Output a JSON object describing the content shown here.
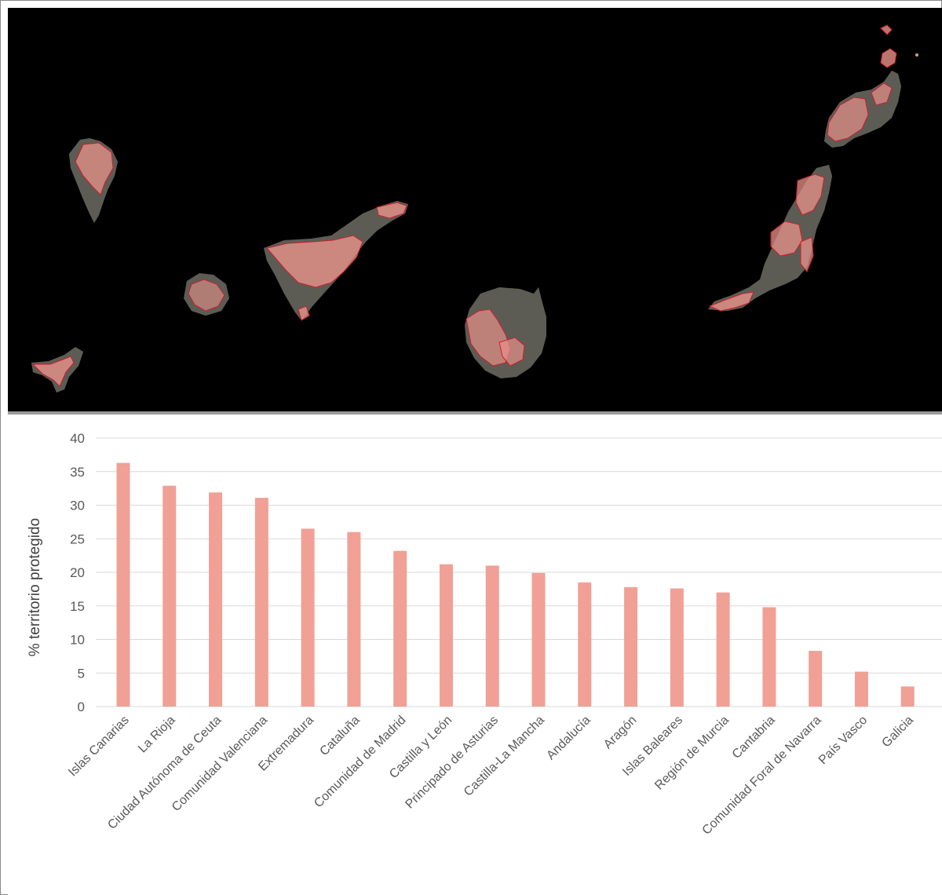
{
  "colors": {
    "map_background": "#000000",
    "island_fill": "#5b5c55",
    "protected_fill": "#e8928a",
    "protected_edge": "#c8202a",
    "bar": "#f0a095",
    "grid": "#d9d9d9",
    "text": "#595959"
  },
  "map": {
    "islands": [
      "la-palma",
      "la-gomera",
      "el-hierro",
      "tenerife",
      "gran-canaria",
      "fuerteventura",
      "lanzarote",
      "la-graciosa"
    ]
  },
  "chart_data": {
    "type": "bar",
    "categories": [
      "Islas Canarias",
      "La Rioja",
      "Ciudad Autónoma de Ceuta",
      "Comunidad Valenciana",
      "Extremadura",
      "Cataluña",
      "Comunidad de Madrid",
      "Castilla y León",
      "Principado de Asturias",
      "Castilla-La Mancha",
      "Andalucía",
      "Aragón",
      "Islas Baleares",
      "Región de Murcia",
      "Cantabria",
      "Comunidad Foral de Navarra",
      "País Vasco",
      "Galicia"
    ],
    "values": [
      36.3,
      32.9,
      31.9,
      31.1,
      26.5,
      26.0,
      23.2,
      21.2,
      21.0,
      19.9,
      18.5,
      17.8,
      17.6,
      17.0,
      14.8,
      8.3,
      5.2,
      3.0
    ],
    "ylabel": "% territorio protegido",
    "xlabel": "",
    "ylim": [
      0,
      40
    ],
    "yticks": [
      0,
      5,
      10,
      15,
      20,
      25,
      30,
      35,
      40
    ],
    "grid": true,
    "legend": "none"
  }
}
